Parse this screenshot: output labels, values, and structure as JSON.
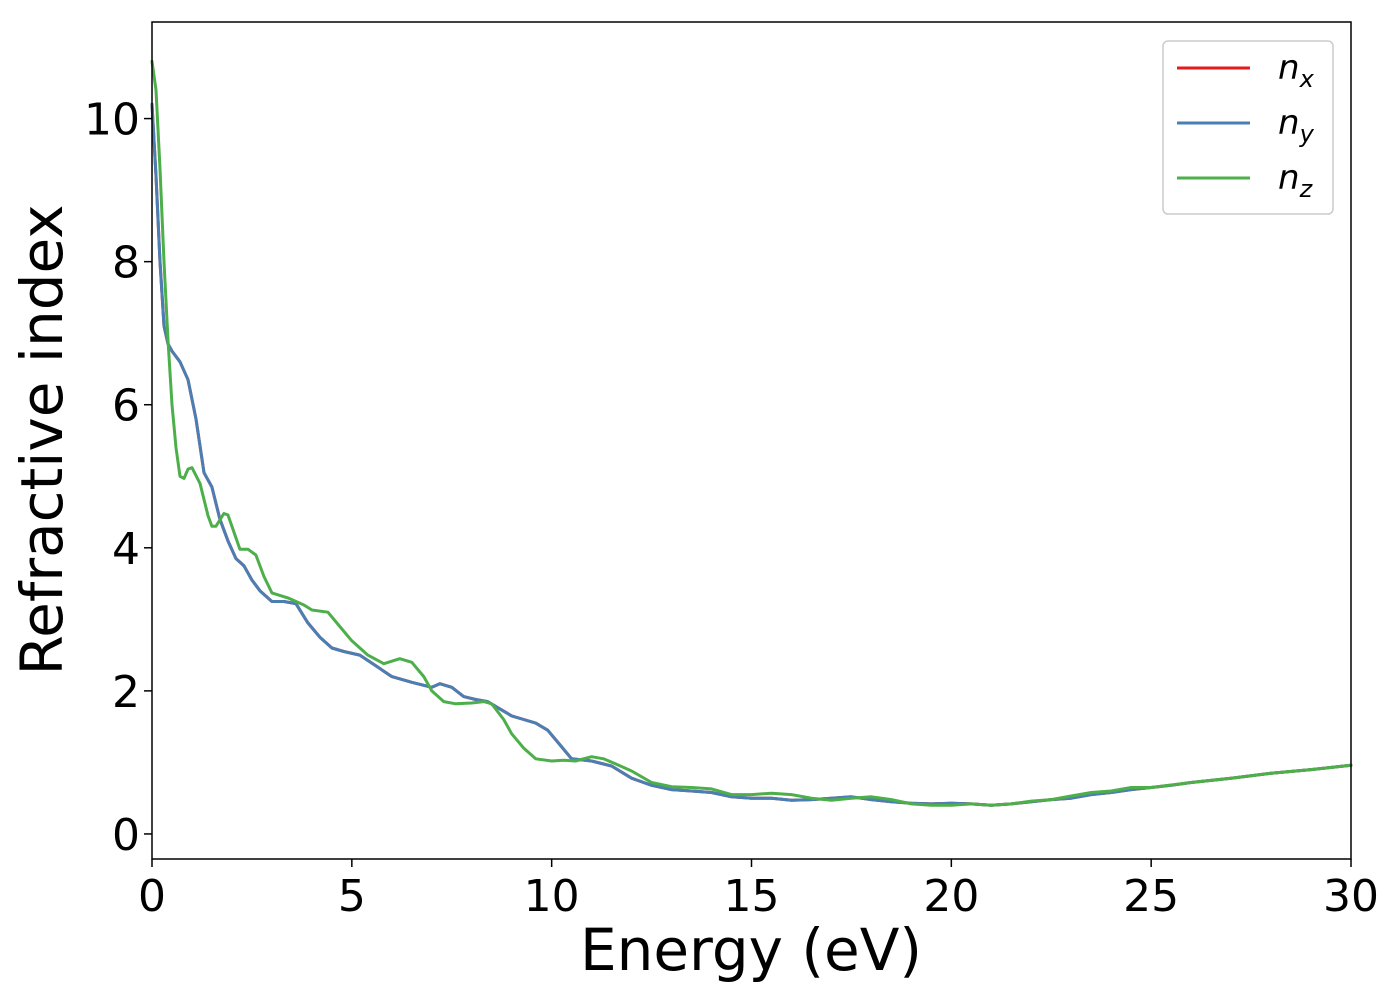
{
  "chart_data": {
    "type": "line",
    "title": "",
    "xlabel": "Energy (eV)",
    "ylabel": "Refractive index",
    "xlim": [
      0,
      30
    ],
    "ylim": [
      -0.35,
      11.35
    ],
    "xticks": [
      0,
      5,
      10,
      15,
      20,
      25,
      30
    ],
    "yticks": [
      0,
      2,
      4,
      6,
      8,
      10
    ],
    "grid": false,
    "legend": "top-right",
    "series": [
      {
        "name": "n",
        "sub": "x",
        "color": "#e41a1c",
        "x": [
          0,
          0.1,
          0.2,
          0.3,
          0.4,
          0.5,
          0.7,
          0.9,
          1.1,
          1.3,
          1.5,
          1.7,
          1.9,
          2.1,
          2.3,
          2.5,
          2.7,
          3.0,
          3.3,
          3.6,
          3.9,
          4.2,
          4.5,
          4.8,
          5.2,
          5.6,
          6.0,
          6.5,
          7.0,
          7.2,
          7.5,
          7.8,
          8.1,
          8.4,
          8.7,
          9.0,
          9.3,
          9.6,
          9.9,
          10.2,
          10.5,
          11.0,
          11.5,
          12.0,
          12.5,
          13.0,
          13.5,
          14.0,
          14.5,
          15.0,
          15.5,
          16.0,
          16.5,
          17.0,
          17.5,
          18.0,
          18.5,
          19.0,
          19.5,
          20.0,
          20.5,
          21.0,
          21.5,
          22.0,
          22.5,
          23.0,
          23.5,
          24.0,
          24.5,
          25.0,
          25.5,
          26.0,
          27.0,
          28.0,
          29.0,
          30.0
        ],
        "y": [
          10.2,
          9.2,
          8.0,
          7.1,
          6.85,
          6.75,
          6.6,
          6.35,
          5.8,
          5.05,
          4.85,
          4.4,
          4.1,
          3.85,
          3.75,
          3.55,
          3.4,
          3.25,
          3.25,
          3.22,
          2.95,
          2.75,
          2.6,
          2.55,
          2.5,
          2.35,
          2.2,
          2.12,
          2.05,
          2.1,
          2.05,
          1.92,
          1.88,
          1.85,
          1.75,
          1.65,
          1.6,
          1.55,
          1.45,
          1.25,
          1.05,
          1.02,
          0.95,
          0.78,
          0.68,
          0.62,
          0.6,
          0.58,
          0.52,
          0.5,
          0.5,
          0.47,
          0.48,
          0.5,
          0.52,
          0.48,
          0.45,
          0.43,
          0.42,
          0.43,
          0.42,
          0.4,
          0.42,
          0.45,
          0.48,
          0.5,
          0.55,
          0.58,
          0.62,
          0.65,
          0.68,
          0.72,
          0.78,
          0.85,
          0.9,
          0.96
        ]
      },
      {
        "name": "n",
        "sub": "y",
        "color": "#4a7fb4",
        "x": [
          0,
          0.1,
          0.2,
          0.3,
          0.4,
          0.5,
          0.7,
          0.9,
          1.1,
          1.3,
          1.5,
          1.7,
          1.9,
          2.1,
          2.3,
          2.5,
          2.7,
          3.0,
          3.3,
          3.6,
          3.9,
          4.2,
          4.5,
          4.8,
          5.2,
          5.6,
          6.0,
          6.5,
          7.0,
          7.2,
          7.5,
          7.8,
          8.1,
          8.4,
          8.7,
          9.0,
          9.3,
          9.6,
          9.9,
          10.2,
          10.5,
          11.0,
          11.5,
          12.0,
          12.5,
          13.0,
          13.5,
          14.0,
          14.5,
          15.0,
          15.5,
          16.0,
          16.5,
          17.0,
          17.5,
          18.0,
          18.5,
          19.0,
          19.5,
          20.0,
          20.5,
          21.0,
          21.5,
          22.0,
          22.5,
          23.0,
          23.5,
          24.0,
          24.5,
          25.0,
          25.5,
          26.0,
          27.0,
          28.0,
          29.0,
          30.0
        ],
        "y": [
          10.2,
          9.2,
          8.0,
          7.1,
          6.85,
          6.75,
          6.6,
          6.35,
          5.8,
          5.05,
          4.85,
          4.4,
          4.1,
          3.85,
          3.75,
          3.55,
          3.4,
          3.25,
          3.25,
          3.22,
          2.95,
          2.75,
          2.6,
          2.55,
          2.5,
          2.35,
          2.2,
          2.12,
          2.05,
          2.1,
          2.05,
          1.92,
          1.88,
          1.85,
          1.75,
          1.65,
          1.6,
          1.55,
          1.45,
          1.25,
          1.05,
          1.02,
          0.95,
          0.78,
          0.68,
          0.62,
          0.6,
          0.58,
          0.52,
          0.5,
          0.5,
          0.47,
          0.48,
          0.5,
          0.52,
          0.48,
          0.45,
          0.43,
          0.42,
          0.43,
          0.42,
          0.4,
          0.42,
          0.45,
          0.48,
          0.5,
          0.55,
          0.58,
          0.62,
          0.65,
          0.68,
          0.72,
          0.78,
          0.85,
          0.9,
          0.96
        ]
      },
      {
        "name": "n",
        "sub": "z",
        "color": "#4daf4a",
        "x": [
          0,
          0.1,
          0.2,
          0.3,
          0.4,
          0.5,
          0.6,
          0.7,
          0.8,
          0.9,
          1.0,
          1.2,
          1.4,
          1.5,
          1.6,
          1.8,
          1.9,
          2.0,
          2.2,
          2.4,
          2.6,
          2.8,
          3.0,
          3.4,
          3.8,
          4.0,
          4.4,
          4.7,
          5.0,
          5.4,
          5.8,
          6.2,
          6.5,
          6.8,
          7.0,
          7.3,
          7.6,
          8.0,
          8.3,
          8.5,
          8.8,
          9.0,
          9.3,
          9.6,
          10.0,
          10.3,
          10.6,
          10.8,
          11.0,
          11.3,
          11.6,
          12.0,
          12.5,
          13.0,
          13.5,
          14.0,
          14.5,
          15.0,
          15.5,
          16.0,
          16.5,
          17.0,
          17.5,
          18.0,
          18.5,
          19.0,
          19.5,
          20.0,
          20.5,
          21.0,
          21.5,
          22.0,
          22.5,
          23.0,
          23.5,
          24.0,
          24.5,
          25.0,
          26.0,
          27.0,
          28.0,
          29.0,
          30.0
        ],
        "y": [
          10.8,
          10.4,
          9.3,
          8.0,
          6.9,
          6.0,
          5.4,
          5.0,
          4.97,
          5.1,
          5.12,
          4.9,
          4.45,
          4.3,
          4.3,
          4.48,
          4.46,
          4.3,
          3.98,
          3.98,
          3.9,
          3.6,
          3.37,
          3.3,
          3.2,
          3.13,
          3.1,
          2.9,
          2.7,
          2.5,
          2.38,
          2.45,
          2.4,
          2.2,
          2.0,
          1.85,
          1.82,
          1.83,
          1.85,
          1.82,
          1.6,
          1.4,
          1.2,
          1.05,
          1.02,
          1.03,
          1.02,
          1.05,
          1.08,
          1.05,
          0.98,
          0.88,
          0.72,
          0.66,
          0.65,
          0.63,
          0.55,
          0.55,
          0.57,
          0.55,
          0.5,
          0.47,
          0.5,
          0.52,
          0.48,
          0.42,
          0.4,
          0.4,
          0.42,
          0.4,
          0.42,
          0.46,
          0.48,
          0.53,
          0.58,
          0.6,
          0.65,
          0.65,
          0.72,
          0.78,
          0.85,
          0.9,
          0.96
        ]
      }
    ]
  }
}
